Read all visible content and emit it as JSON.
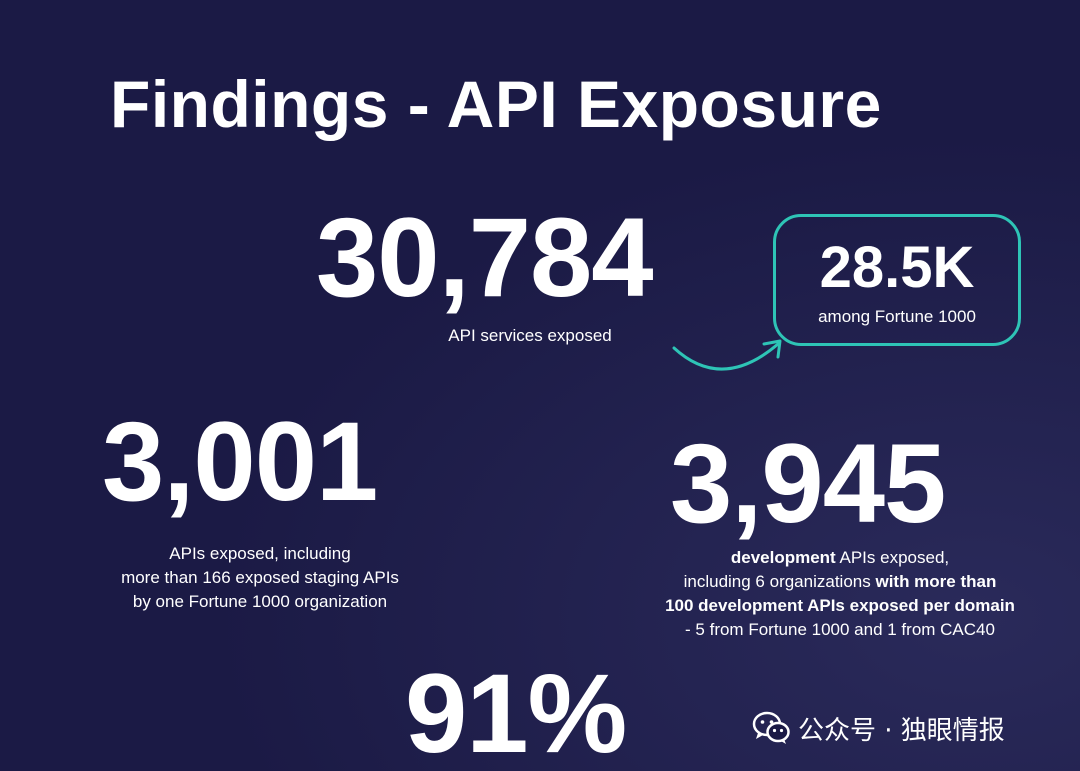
{
  "title": "Findings - API Exposure",
  "stats": [
    {
      "value": "30,784",
      "caption": "API services exposed"
    },
    {
      "value": "3,001",
      "caption_lines": [
        "APIs exposed, including",
        "more than 166 exposed staging APIs",
        "by one Fortune 1000 organization"
      ]
    },
    {
      "value": "3,945",
      "caption_line1_bold": "development",
      "caption_line1_rest": " APIs exposed,",
      "caption_line2_pre": "including 6 organizations ",
      "caption_line2_bold": "with more than",
      "caption_line3_bold": "100 development APIs exposed per domain",
      "caption_line4": "- 5 from Fortune 1000 and 1 from CAC40"
    },
    {
      "value": "91%"
    }
  ],
  "callout": {
    "value": "28.5K",
    "label": "among Fortune 1000",
    "border_color": "#2ec4b6"
  },
  "watermark": {
    "text": "公众号 · 独眼情报",
    "icon": "wechat-icon"
  },
  "colors": {
    "background": "#1b1a45",
    "accent": "#2ec4b6",
    "text": "#ffffff"
  }
}
